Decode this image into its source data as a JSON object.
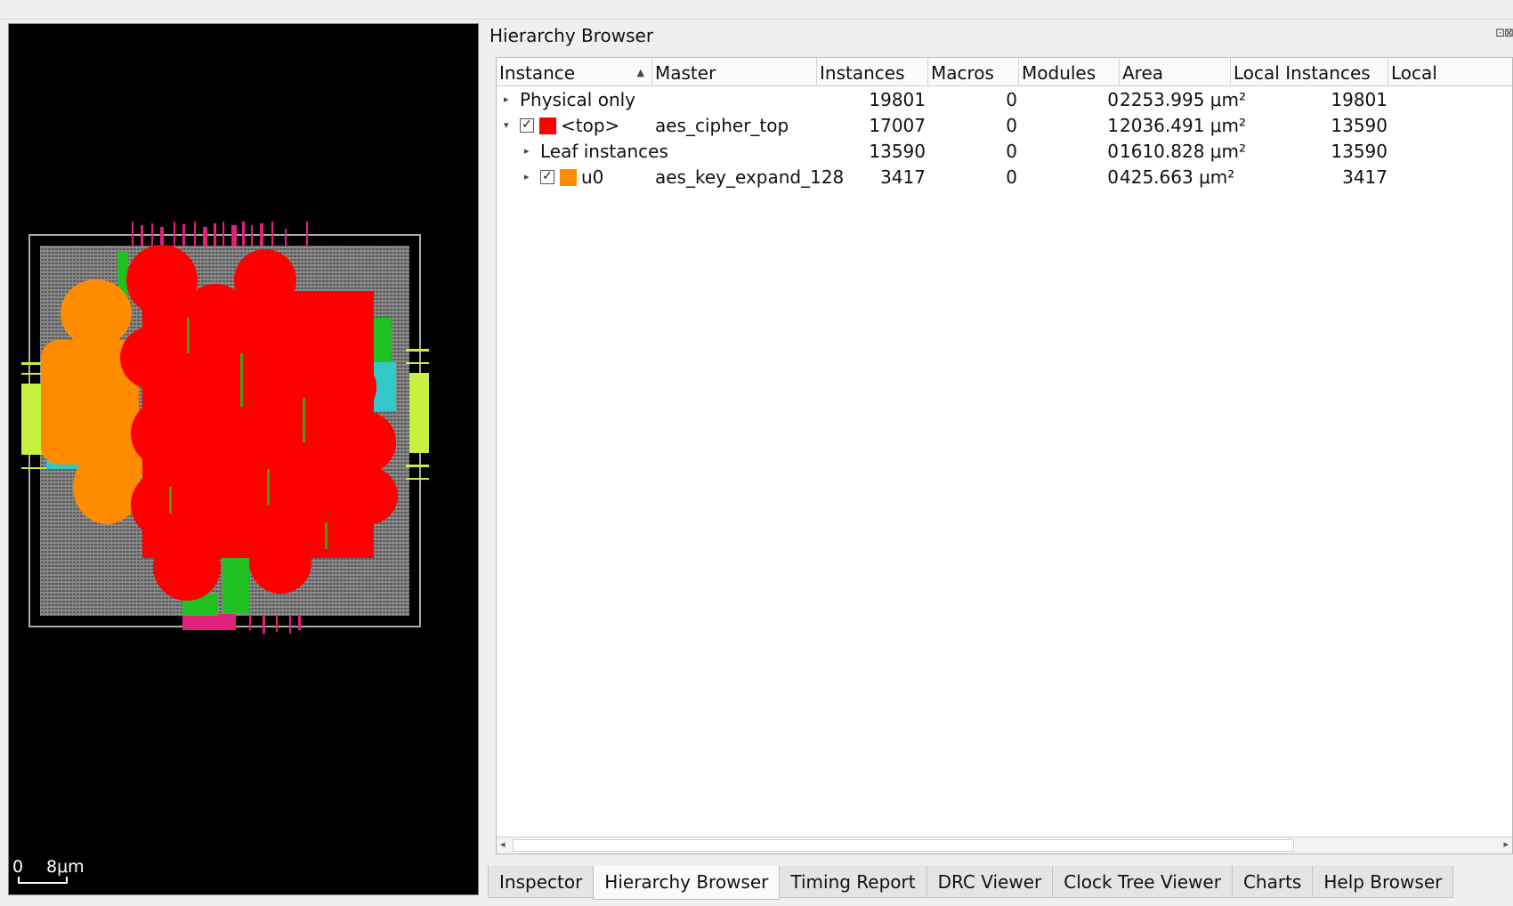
{
  "layout_view": {
    "scale_start": "0",
    "scale_end": "8μm"
  },
  "hierarchy": {
    "title": "Hierarchy Browser",
    "dock_buttons": "⊡⊠",
    "columns": [
      "Instance",
      "Master",
      "Instances",
      "Macros",
      "Modules",
      "Area",
      "Local Instances",
      "Local"
    ],
    "rows": [
      {
        "expanded": false,
        "checked": null,
        "color": null,
        "instance": "Physical only",
        "master": "",
        "instances": "19801",
        "macros": "0",
        "modules": "0",
        "area": "2253.995 μm²",
        "local_instances": "19801"
      },
      {
        "expanded": true,
        "checked": true,
        "color": "#ff0000",
        "instance": "<top>",
        "master": "aes_cipher_top",
        "instances": "17007",
        "macros": "0",
        "modules": "1",
        "area": "2036.491 μm²",
        "local_instances": "13590"
      },
      {
        "expanded": false,
        "checked": null,
        "color": null,
        "instance": "Leaf instances",
        "master": "",
        "instances": "13590",
        "macros": "0",
        "modules": "0",
        "area": "1610.828 μm²",
        "local_instances": "13590"
      },
      {
        "expanded": false,
        "checked": true,
        "color": "#ff8c00",
        "instance": "u0",
        "master": "aes_key_expand_128",
        "instances": "3417",
        "macros": "0",
        "modules": "0",
        "area": "425.663 μm²",
        "local_instances": "3417"
      }
    ],
    "check_mark": "✓",
    "caret_collapsed": "▸",
    "caret_expanded": "▾",
    "sort_indicator": "▲"
  },
  "tabs": [
    "Inspector",
    "Hierarchy Browser",
    "Timing Report",
    "DRC Viewer",
    "Clock Tree Viewer",
    "Charts",
    "Help Browser"
  ],
  "active_tab": "Hierarchy Browser",
  "colors": {
    "top_module": "#ff0000",
    "u0_module": "#ff8c00",
    "pin_pink": "#e0207a",
    "pin_yellow": "#c8f040",
    "route_green": "#20c020",
    "route_cyan": "#30c8c8"
  }
}
